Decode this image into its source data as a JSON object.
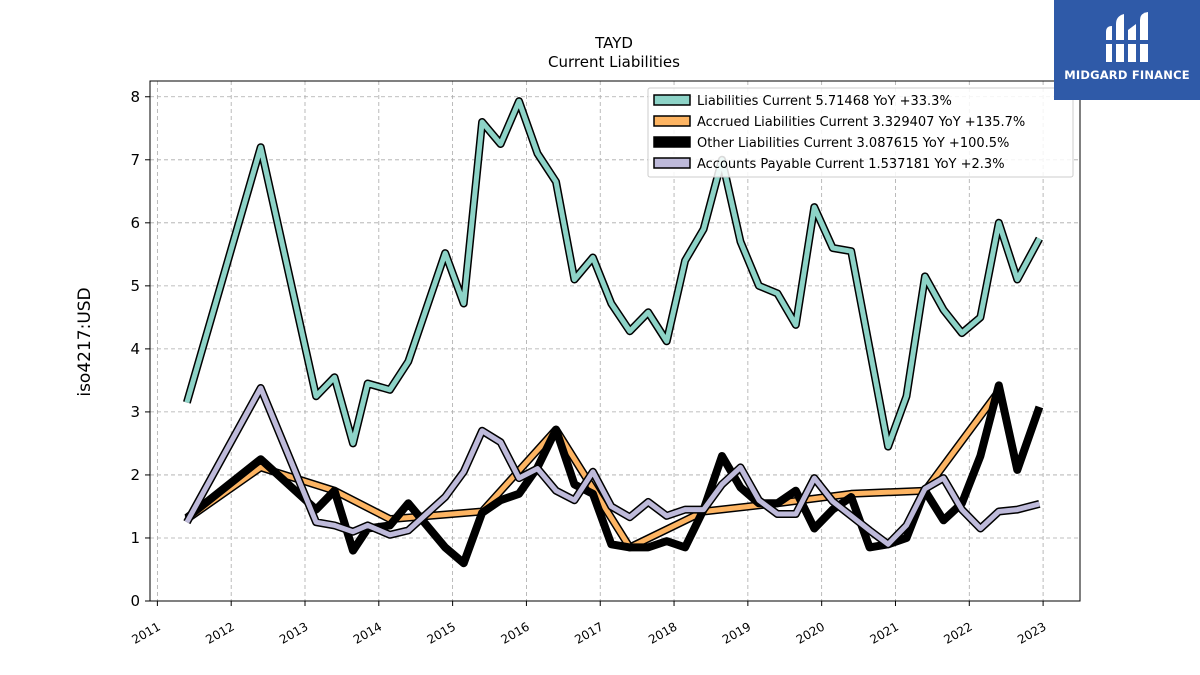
{
  "title": "TAYD",
  "subtitle": "Current  Liabilities",
  "brand": {
    "name": "MIDGARD FINANCE",
    "color": "#2f5aa8",
    "icon": "midgard-logo-icon"
  },
  "chart_data": {
    "type": "line",
    "ylabel": "iso4217:USD",
    "xlabel": "",
    "ylim": [
      0,
      8.25
    ],
    "xlim": [
      2010.9,
      2023.5
    ],
    "yticks": [
      0,
      1,
      2,
      3,
      4,
      5,
      6,
      7,
      8
    ],
    "xticks": [
      2011,
      2012,
      2013,
      2014,
      2015,
      2016,
      2017,
      2018,
      2019,
      2020,
      2021,
      2022,
      2023
    ],
    "grid": true,
    "legend_position": "top-right",
    "series": [
      {
        "name": "Liabilities Current  5.71468 YoY +33.3%",
        "color": "#8dd3c7",
        "points": [
          [
            2011.4,
            3.15
          ],
          [
            2012.4,
            7.2
          ],
          [
            2013.15,
            3.25
          ],
          [
            2013.4,
            3.55
          ],
          [
            2013.65,
            2.5
          ],
          [
            2013.85,
            3.45
          ],
          [
            2014.15,
            3.35
          ],
          [
            2014.4,
            3.8
          ],
          [
            2014.9,
            5.52
          ],
          [
            2015.15,
            4.72
          ],
          [
            2015.4,
            7.6
          ],
          [
            2015.65,
            7.25
          ],
          [
            2015.9,
            7.93
          ],
          [
            2016.15,
            7.1
          ],
          [
            2016.4,
            6.65
          ],
          [
            2016.65,
            5.1
          ],
          [
            2016.9,
            5.45
          ],
          [
            2017.15,
            4.72
          ],
          [
            2017.4,
            4.28
          ],
          [
            2017.65,
            4.58
          ],
          [
            2017.9,
            4.12
          ],
          [
            2018.15,
            5.4
          ],
          [
            2018.4,
            5.9
          ],
          [
            2018.65,
            7.0
          ],
          [
            2018.9,
            5.7
          ],
          [
            2019.15,
            5.0
          ],
          [
            2019.4,
            4.88
          ],
          [
            2019.65,
            4.38
          ],
          [
            2019.9,
            6.25
          ],
          [
            2020.15,
            5.6
          ],
          [
            2020.4,
            5.55
          ],
          [
            2020.9,
            2.45
          ],
          [
            2021.15,
            3.25
          ],
          [
            2021.4,
            5.15
          ],
          [
            2021.65,
            4.62
          ],
          [
            2021.9,
            4.25
          ],
          [
            2022.15,
            4.5
          ],
          [
            2022.4,
            6.0
          ],
          [
            2022.65,
            5.1
          ],
          [
            2022.95,
            5.75
          ]
        ]
      },
      {
        "name": "Accrued Liabilities Current  3.329407 YoY +135.7%",
        "color": "#fdb462",
        "points": [
          [
            2011.4,
            1.3
          ],
          [
            2012.4,
            2.12
          ],
          [
            2013.4,
            1.75
          ],
          [
            2014.15,
            1.3
          ],
          [
            2015.4,
            1.42
          ],
          [
            2016.4,
            2.72
          ],
          [
            2017.4,
            0.85
          ],
          [
            2018.4,
            1.42
          ],
          [
            2019.4,
            1.55
          ],
          [
            2020.4,
            1.7
          ],
          [
            2021.4,
            1.75
          ],
          [
            2022.4,
            3.33
          ]
        ]
      },
      {
        "name": "Other Liabilities Current  3.087615 YoY +100.5%",
        "color": "#000000",
        "points": [
          [
            2011.4,
            1.32
          ],
          [
            2012.4,
            2.25
          ],
          [
            2013.15,
            1.45
          ],
          [
            2013.4,
            1.75
          ],
          [
            2013.65,
            0.8
          ],
          [
            2013.85,
            1.15
          ],
          [
            2014.15,
            1.2
          ],
          [
            2014.4,
            1.55
          ],
          [
            2014.9,
            0.85
          ],
          [
            2015.15,
            0.6
          ],
          [
            2015.4,
            1.4
          ],
          [
            2015.65,
            1.6
          ],
          [
            2015.9,
            1.7
          ],
          [
            2016.15,
            2.12
          ],
          [
            2016.4,
            2.72
          ],
          [
            2016.65,
            1.85
          ],
          [
            2016.9,
            1.7
          ],
          [
            2017.15,
            0.9
          ],
          [
            2017.4,
            0.85
          ],
          [
            2017.65,
            0.85
          ],
          [
            2017.9,
            0.95
          ],
          [
            2018.15,
            0.85
          ],
          [
            2018.4,
            1.45
          ],
          [
            2018.65,
            2.3
          ],
          [
            2018.9,
            1.8
          ],
          [
            2019.15,
            1.55
          ],
          [
            2019.4,
            1.55
          ],
          [
            2019.65,
            1.75
          ],
          [
            2019.9,
            1.15
          ],
          [
            2020.15,
            1.45
          ],
          [
            2020.4,
            1.65
          ],
          [
            2020.65,
            0.85
          ],
          [
            2020.9,
            0.9
          ],
          [
            2021.15,
            1.0
          ],
          [
            2021.4,
            1.75
          ],
          [
            2021.65,
            1.28
          ],
          [
            2021.9,
            1.55
          ],
          [
            2022.15,
            2.3
          ],
          [
            2022.4,
            3.42
          ],
          [
            2022.65,
            2.08
          ],
          [
            2022.95,
            3.08
          ]
        ]
      },
      {
        "name": "Accounts Payable Current  1.537181 YoY +2.3%",
        "color": "#bebada",
        "points": [
          [
            2011.4,
            1.25
          ],
          [
            2012.4,
            3.38
          ],
          [
            2013.15,
            1.25
          ],
          [
            2013.4,
            1.2
          ],
          [
            2013.65,
            1.1
          ],
          [
            2013.85,
            1.2
          ],
          [
            2014.15,
            1.05
          ],
          [
            2014.4,
            1.12
          ],
          [
            2014.9,
            1.65
          ],
          [
            2015.15,
            2.05
          ],
          [
            2015.4,
            2.7
          ],
          [
            2015.65,
            2.52
          ],
          [
            2015.9,
            1.95
          ],
          [
            2016.15,
            2.1
          ],
          [
            2016.4,
            1.75
          ],
          [
            2016.65,
            1.6
          ],
          [
            2016.9,
            2.05
          ],
          [
            2017.15,
            1.5
          ],
          [
            2017.4,
            1.33
          ],
          [
            2017.65,
            1.57
          ],
          [
            2017.9,
            1.35
          ],
          [
            2018.15,
            1.45
          ],
          [
            2018.4,
            1.45
          ],
          [
            2018.65,
            1.85
          ],
          [
            2018.9,
            2.12
          ],
          [
            2019.15,
            1.6
          ],
          [
            2019.4,
            1.38
          ],
          [
            2019.65,
            1.38
          ],
          [
            2019.9,
            1.95
          ],
          [
            2020.15,
            1.58
          ],
          [
            2020.4,
            1.35
          ],
          [
            2020.65,
            1.12
          ],
          [
            2020.9,
            0.9
          ],
          [
            2021.15,
            1.2
          ],
          [
            2021.4,
            1.78
          ],
          [
            2021.65,
            1.95
          ],
          [
            2021.9,
            1.45
          ],
          [
            2022.15,
            1.15
          ],
          [
            2022.4,
            1.42
          ],
          [
            2022.65,
            1.45
          ],
          [
            2022.95,
            1.54
          ]
        ]
      }
    ]
  }
}
